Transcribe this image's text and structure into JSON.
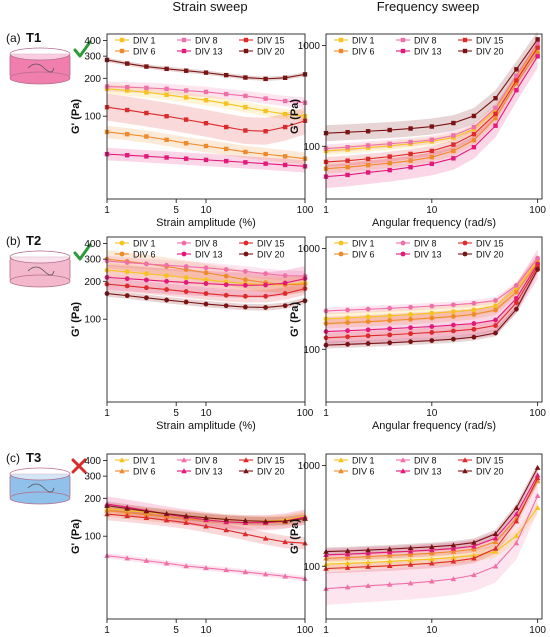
{
  "headers": {
    "strain": "Strain sweep",
    "frequency": "Frequency sweep"
  },
  "series_names": [
    "DIV 1",
    "DIV 6",
    "DIV 8",
    "DIV 13",
    "DIV 15",
    "DIV 20"
  ],
  "series_colors": [
    "#f7c21e",
    "#ef8a2a",
    "#f06fa8",
    "#e3197a",
    "#dd2a2a",
    "#7a1414"
  ],
  "labels": {
    "ylabel": "G' (Pa)",
    "strain_xlabel": "Strain amplitude (%)",
    "freq_xlabel": "Angular frequency (rad/s)"
  },
  "axis_ticks": {
    "strain_x": [
      1,
      5,
      10,
      100
    ],
    "freq_x": [
      1,
      10,
      100
    ],
    "strain_y": [
      100,
      200,
      300,
      400
    ],
    "freq_y": [
      100,
      1000
    ]
  },
  "rows": [
    {
      "tag": "(a)",
      "name": "T1",
      "verdict": "check",
      "marker": "square",
      "cartridge_color": "#f07fae",
      "chart_data": [
        {
          "type": "line",
          "panel": "strain",
          "xlabel": "Strain amplitude (%)",
          "ylabel": "G' (Pa)",
          "xscale": "log",
          "yscale": "log",
          "xlim": [
            1,
            100
          ],
          "ylim": [
            22,
            450
          ],
          "x": [
            1,
            1.6,
            2.5,
            4,
            6.3,
            10,
            16,
            25,
            40,
            63,
            100
          ],
          "series": [
            {
              "name": "DIV 1",
              "values": [
                165,
                160,
                155,
                148,
                141,
                134,
                126,
                118,
                110,
                104,
                100
              ],
              "band": 0.1
            },
            {
              "name": "DIV 6",
              "values": [
                75,
                72,
                69,
                65,
                61,
                58,
                55,
                52,
                50,
                48,
                46
              ],
              "band": 0.12
            },
            {
              "name": "DIV 8",
              "values": [
                172,
                170,
                168,
                165,
                160,
                156,
                150,
                145,
                138,
                132,
                128
              ],
              "band": 0.1
            },
            {
              "name": "DIV 13",
              "values": [
                50,
                49,
                48,
                47,
                46,
                45,
                44,
                43,
                42,
                41,
                40
              ],
              "band": 0.12
            },
            {
              "name": "DIV 15",
              "values": [
                118,
                112,
                106,
                100,
                94,
                88,
                82,
                77,
                76,
                82,
                92
              ],
              "band": 0.28
            },
            {
              "name": "DIV 20",
              "values": [
                280,
                262,
                248,
                238,
                230,
                222,
                212,
                203,
                198,
                202,
                215
              ],
              "band": 0.04
            }
          ]
        },
        {
          "type": "line",
          "panel": "frequency",
          "xlabel": "Angular frequency (rad/s)",
          "ylabel": "G' (Pa)",
          "xscale": "log",
          "yscale": "log",
          "xlim": [
            1,
            110
          ],
          "ylim": [
            30,
            1300
          ],
          "x": [
            1,
            1.6,
            2.5,
            4,
            6.3,
            10,
            16,
            25,
            40,
            63,
            100
          ],
          "series": [
            {
              "name": "DIV 1",
              "values": [
                90,
                93,
                97,
                101,
                106,
                112,
                122,
                148,
                230,
                480,
                1000
              ],
              "band": 0.1
            },
            {
              "name": "DIV 6",
              "values": [
                60,
                62,
                65,
                68,
                72,
                78,
                90,
                115,
                190,
                420,
                850
              ],
              "band": 0.12
            },
            {
              "name": "DIV 8",
              "values": [
                95,
                98,
                102,
                106,
                110,
                116,
                128,
                155,
                240,
                500,
                1050
              ],
              "band": 0.1
            },
            {
              "name": "DIV 13",
              "values": [
                50,
                52,
                55,
                58,
                62,
                67,
                76,
                98,
                160,
                360,
                780
              ],
              "band": 0.3
            },
            {
              "name": "DIV 15",
              "values": [
                70,
                72,
                75,
                79,
                84,
                90,
                104,
                132,
                210,
                450,
                950
              ],
              "band": 0.12
            },
            {
              "name": "DIV 20",
              "values": [
                135,
                138,
                141,
                145,
                150,
                157,
                170,
                200,
                300,
                580,
                1150
              ],
              "band": 0.2
            }
          ]
        }
      ]
    },
    {
      "tag": "(b)",
      "name": "T2",
      "verdict": "check",
      "marker": "circle",
      "cartridge_color": "#f4b8cc",
      "chart_data": [
        {
          "type": "line",
          "panel": "strain",
          "xlabel": "Strain amplitude (%)",
          "ylabel": "G' (Pa)",
          "xscale": "log",
          "yscale": "log",
          "xlim": [
            1,
            100
          ],
          "ylim": [
            22,
            450
          ],
          "x": [
            1,
            1.6,
            2.5,
            4,
            6.3,
            10,
            16,
            25,
            40,
            63,
            100
          ],
          "series": [
            {
              "name": "DIV 1",
              "values": [
                245,
                238,
                230,
                222,
                214,
                206,
                198,
                192,
                188,
                188,
                195
              ],
              "band": 0.14
            },
            {
              "name": "DIV 6",
              "values": [
                300,
                288,
                276,
                262,
                248,
                234,
                220,
                206,
                195,
                188,
                190
              ],
              "band": 0.18
            },
            {
              "name": "DIV 8",
              "values": [
                290,
                282,
                275,
                268,
                262,
                256,
                248,
                240,
                230,
                222,
                220
              ],
              "band": 0.1
            },
            {
              "name": "DIV 13",
              "values": [
                215,
                210,
                205,
                200,
                196,
                192,
                188,
                186,
                187,
                194,
                210
              ],
              "band": 0.26
            },
            {
              "name": "DIV 15",
              "values": [
                190,
                184,
                178,
                172,
                166,
                160,
                155,
                152,
                152,
                160,
                175
              ],
              "band": 0.12
            },
            {
              "name": "DIV 20",
              "values": [
                160,
                154,
                148,
                142,
                137,
                132,
                128,
                125,
                124,
                128,
                140
              ],
              "band": 0.06
            }
          ]
        },
        {
          "type": "line",
          "panel": "frequency",
          "xlabel": "Angular frequency (rad/s)",
          "ylabel": "G' (Pa)",
          "xscale": "log",
          "yscale": "log",
          "xlim": [
            1,
            110
          ],
          "ylim": [
            30,
            1300
          ],
          "x": [
            1,
            1.6,
            2.5,
            4,
            6.3,
            10,
            16,
            25,
            40,
            63,
            100
          ],
          "series": [
            {
              "name": "DIV 1",
              "values": [
                200,
                205,
                210,
                215,
                221,
                228,
                236,
                246,
                270,
                400,
                760
              ],
              "band": 0.15
            },
            {
              "name": "DIV 6",
              "values": [
                180,
                184,
                188,
                193,
                198,
                204,
                212,
                222,
                245,
                370,
                720
              ],
              "band": 0.12
            },
            {
              "name": "DIV 8",
              "values": [
                240,
                245,
                250,
                255,
                261,
                268,
                276,
                286,
                305,
                430,
                800
              ],
              "band": 0.08
            },
            {
              "name": "DIV 13",
              "values": [
                150,
                153,
                156,
                160,
                164,
                168,
                174,
                180,
                195,
                320,
                700
              ],
              "band": 0.4
            },
            {
              "name": "DIV 15",
              "values": [
                130,
                133,
                136,
                139,
                143,
                147,
                152,
                158,
                172,
                290,
                660
              ],
              "band": 0.12
            },
            {
              "name": "DIV 20",
              "values": [
                110,
                112,
                114,
                116,
                119,
                122,
                126,
                132,
                145,
                250,
                620
              ],
              "band": 0.08
            }
          ]
        }
      ]
    },
    {
      "tag": "(c)",
      "name": "T3",
      "verdict": "cross",
      "marker": "triangle",
      "cartridge_color": "#8fc1ea",
      "chart_data": [
        {
          "type": "line",
          "panel": "strain",
          "xlabel": "Strain amplitude (%)",
          "ylabel": "G' (Pa)",
          "xscale": "log",
          "yscale": "log",
          "xlim": [
            1,
            100
          ],
          "ylim": [
            22,
            450
          ],
          "x": [
            1,
            1.6,
            2.5,
            4,
            6.3,
            10,
            16,
            25,
            40,
            63,
            100
          ],
          "series": [
            {
              "name": "DIV 1",
              "values": [
                165,
                160,
                155,
                150,
                145,
                140,
                136,
                133,
                132,
                135,
                145
              ],
              "band": 0.1
            },
            {
              "name": "DIV 6",
              "values": [
                160,
                154,
                148,
                143,
                138,
                134,
                130,
                128,
                128,
                130,
                138
              ],
              "band": 0.12
            },
            {
              "name": "DIV 8",
              "values": [
                70,
                67,
                64,
                61,
                58,
                56,
                54,
                52,
                50,
                48,
                46
              ],
              "band": 0.05
            },
            {
              "name": "DIV 13",
              "values": [
                180,
                170,
                160,
                150,
                142,
                135,
                130,
                128,
                128,
                132,
                142
              ],
              "band": 0.15
            },
            {
              "name": "DIV 15",
              "values": [
                150,
                145,
                140,
                134,
                128,
                120,
                112,
                104,
                96,
                90,
                88
              ],
              "band": 0.12
            },
            {
              "name": "DIV 20",
              "values": [
                175,
                166,
                158,
                151,
                145,
                140,
                136,
                133,
                131,
                132,
                138
              ],
              "band": 0.08
            }
          ]
        },
        {
          "type": "line",
          "panel": "frequency",
          "xlabel": "Angular frequency (rad/s)",
          "ylabel": "G' (Pa)",
          "xscale": "log",
          "yscale": "log",
          "xlim": [
            1,
            110
          ],
          "ylim": [
            30,
            1300
          ],
          "x": [
            1,
            1.6,
            2.5,
            4,
            6.3,
            10,
            16,
            25,
            40,
            63,
            100
          ],
          "series": [
            {
              "name": "DIV 1",
              "values": [
                105,
                107,
                109,
                112,
                115,
                118,
                122,
                128,
                140,
                200,
                380
              ],
              "band": 0.15
            },
            {
              "name": "DIV 6",
              "values": [
                120,
                122,
                125,
                128,
                131,
                135,
                140,
                148,
                175,
                300,
                700
              ],
              "band": 0.1
            },
            {
              "name": "DIV 8",
              "values": [
                60,
                62,
                64,
                66,
                68,
                71,
                75,
                82,
                100,
                170,
                500
              ],
              "band": 0.45
            },
            {
              "name": "DIV 13",
              "values": [
                130,
                132,
                135,
                138,
                141,
                145,
                150,
                158,
                190,
                330,
                800
              ],
              "band": 0.15
            },
            {
              "name": "DIV 15",
              "values": [
                95,
                97,
                99,
                101,
                104,
                107,
                112,
                120,
                150,
                280,
                750
              ],
              "band": 0.12
            },
            {
              "name": "DIV 20",
              "values": [
                140,
                142,
                145,
                148,
                152,
                156,
                162,
                172,
                210,
                380,
                950
              ],
              "band": 0.1
            }
          ]
        }
      ]
    }
  ]
}
